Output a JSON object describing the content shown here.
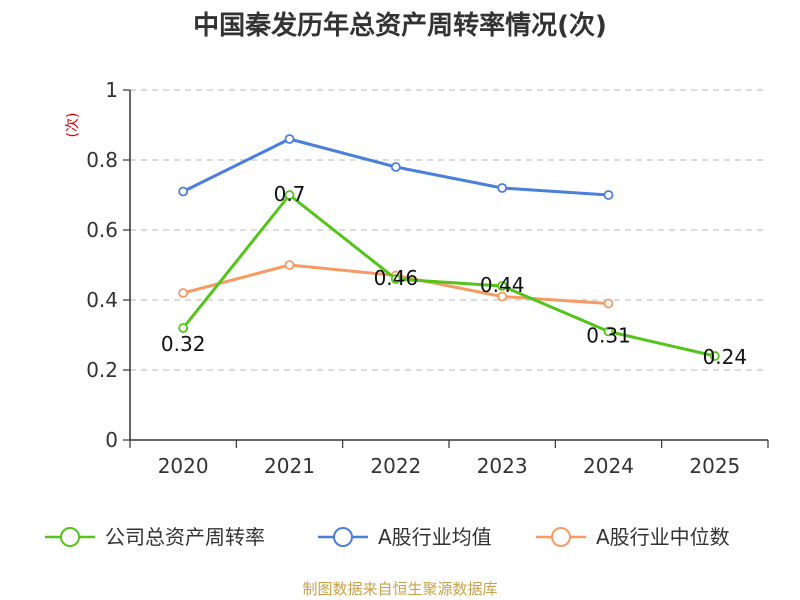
{
  "chart_data": {
    "type": "line",
    "title": "中国秦发历年总资产周转率情况(次)",
    "unit_label": "(次)",
    "categories": [
      "2020",
      "2021",
      "2022",
      "2023",
      "2024",
      "2025"
    ],
    "ylim": [
      0,
      1
    ],
    "yticks": [
      "0",
      "0.2",
      "0.4",
      "0.6",
      "0.8",
      "1"
    ],
    "grid": true,
    "legend_position": "bottom",
    "series": [
      {
        "name": "公司总资产周转率",
        "color": "#52c41a",
        "values": [
          0.32,
          0.7,
          0.46,
          0.44,
          0.31,
          0.24
        ],
        "labels": [
          "0.32",
          "0.7",
          "0.46",
          "0.44",
          "0.31",
          "0.24"
        ]
      },
      {
        "name": "A股行业均值",
        "color": "#4a7fdb",
        "values": [
          0.71,
          0.86,
          0.78,
          0.72,
          0.7,
          null
        ]
      },
      {
        "name": "A股行业中位数",
        "color": "#f79a63",
        "values": [
          0.42,
          0.5,
          0.47,
          0.41,
          0.39,
          null
        ]
      }
    ],
    "source": "制图数据来自恒生聚源数据库"
  }
}
